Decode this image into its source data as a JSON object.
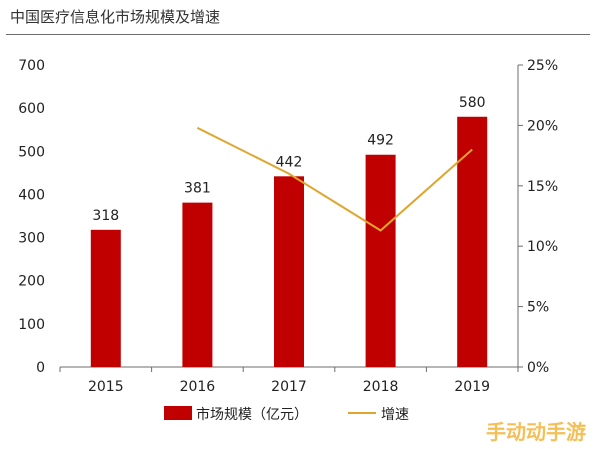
{
  "chart_data": {
    "type": "bar",
    "title": "中国医疗信息化市场规模及增速",
    "categories": [
      "2015",
      "2016",
      "2017",
      "2018",
      "2019"
    ],
    "series": [
      {
        "name": "市场规模（亿元）",
        "type": "bar",
        "axis": "left",
        "values": [
          318,
          381,
          442,
          492,
          580
        ],
        "color": "#c00000"
      },
      {
        "name": "增速",
        "type": "line",
        "axis": "right",
        "values": [
          null,
          19.8,
          16.0,
          11.3,
          18.0
        ],
        "color": "#e0a52c"
      }
    ],
    "y_left": {
      "min": 0,
      "max": 700,
      "ticks": [
        "0",
        "100",
        "200",
        "300",
        "400",
        "500",
        "600",
        "700"
      ]
    },
    "y_right": {
      "min": 0,
      "max": 25,
      "ticks": [
        "0%",
        "5%",
        "10%",
        "15%",
        "20%",
        "25%"
      ]
    },
    "data_labels": [
      "318",
      "381",
      "442",
      "492",
      "580"
    ],
    "legend_position": "bottom",
    "grid": false
  },
  "watermark": "手动动手游"
}
